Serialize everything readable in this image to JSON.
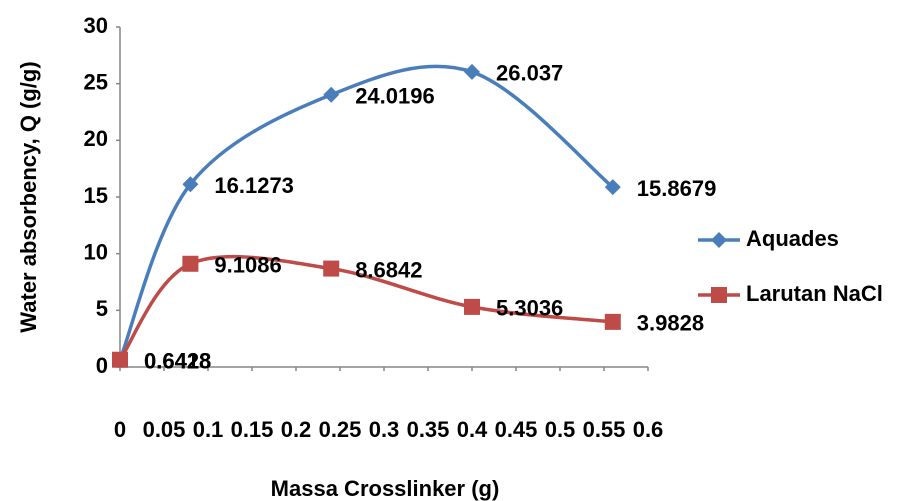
{
  "chart_data": {
    "type": "line",
    "x_label": "Massa Crosslinker (g)",
    "y_label": "Water absorbency, Q (g/g)",
    "x": [
      0,
      0.08,
      0.24,
      0.4,
      0.56
    ],
    "series": [
      {
        "name": "Aquades",
        "color": "#4a7ebb",
        "marker": "diamond",
        "values": [
          0.6428,
          16.1273,
          24.0196,
          26.037,
          15.8679
        ]
      },
      {
        "name": "Larutan NaCl",
        "color": "#be4b48",
        "marker": "square",
        "values": [
          0.6418,
          9.1086,
          8.6842,
          5.3036,
          3.9828
        ]
      }
    ],
    "xlim": [
      0,
      0.6
    ],
    "xticks": [
      0,
      0.05,
      0.1,
      0.15,
      0.2,
      0.25,
      0.3,
      0.35,
      0.4,
      0.45,
      0.5,
      0.55,
      0.6
    ],
    "ylim": [
      0,
      30
    ],
    "yticks": [
      0,
      5,
      10,
      15,
      20,
      25,
      30
    ],
    "smooth": true,
    "grid": false,
    "legend": "right"
  }
}
